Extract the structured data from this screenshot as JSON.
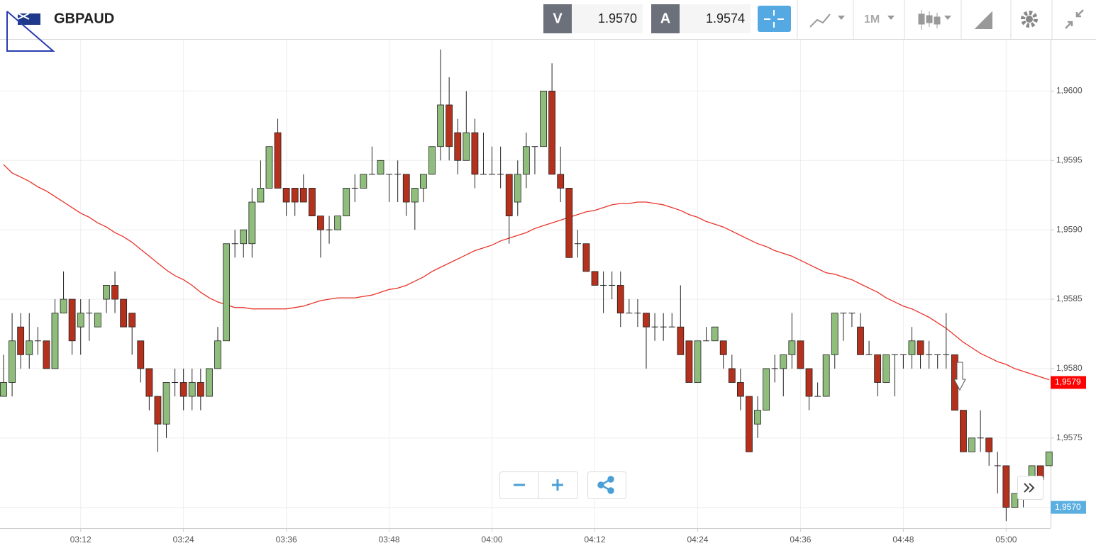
{
  "header": {
    "symbol": "GBPAUD",
    "sell_label": "V",
    "sell_price": "1.9570",
    "buy_label": "A",
    "buy_price": "1.9574",
    "timeframe": "1M"
  },
  "chart_data": {
    "type": "candlestick",
    "x": [
      "03:03",
      "03:04",
      "03:05",
      "03:06",
      "03:07",
      "03:08",
      "03:09",
      "03:10",
      "03:11",
      "03:12",
      "03:13",
      "03:14",
      "03:15",
      "03:16",
      "03:17",
      "03:18",
      "03:19",
      "03:20",
      "03:21",
      "03:22",
      "03:23",
      "03:24",
      "03:25",
      "03:26",
      "03:27",
      "03:28",
      "03:29",
      "03:30",
      "03:31",
      "03:32",
      "03:33",
      "03:34",
      "03:35",
      "03:36",
      "03:37",
      "03:38",
      "03:39",
      "03:40",
      "03:41",
      "03:42",
      "03:43",
      "03:44",
      "03:45",
      "03:46",
      "03:47",
      "03:48",
      "03:49",
      "03:50",
      "03:51",
      "03:52",
      "03:53",
      "03:54",
      "03:55",
      "03:56",
      "03:57",
      "03:58",
      "03:59",
      "04:00",
      "04:01",
      "04:02",
      "04:03",
      "04:04",
      "04:05",
      "04:06",
      "04:07",
      "04:08",
      "04:09",
      "04:10",
      "04:11",
      "04:12",
      "04:13",
      "04:14",
      "04:15",
      "04:16",
      "04:17",
      "04:18",
      "04:19",
      "04:20",
      "04:21",
      "04:22",
      "04:23",
      "04:24",
      "04:25",
      "04:26",
      "04:27",
      "04:28",
      "04:29",
      "04:30",
      "04:31",
      "04:32",
      "04:33",
      "04:34",
      "04:35",
      "04:36",
      "04:37",
      "04:38",
      "04:39",
      "04:40",
      "04:41",
      "04:42",
      "04:43",
      "04:44",
      "04:45",
      "04:46",
      "04:47",
      "04:48",
      "04:49",
      "04:50",
      "04:51",
      "04:52",
      "04:53",
      "04:54",
      "04:55",
      "04:56",
      "04:57",
      "04:58",
      "04:59",
      "05:00",
      "05:01",
      "05:02",
      "05:03",
      "05:04",
      "05:05"
    ],
    "open": [
      1.9578,
      1.9579,
      1.9583,
      1.9581,
      1.9582,
      1.9582,
      1.958,
      1.9584,
      1.9585,
      1.9583,
      1.9584,
      1.9583,
      1.9585,
      1.9586,
      1.9585,
      1.9584,
      1.9582,
      1.958,
      1.9578,
      1.9576,
      1.9579,
      1.9579,
      1.9578,
      1.9579,
      1.9578,
      1.958,
      1.9582,
      1.9589,
      1.9589,
      1.9589,
      1.9592,
      1.9593,
      1.9597,
      1.9593,
      1.9593,
      1.9593,
      1.9593,
      1.9591,
      1.959,
      1.959,
      1.9591,
      1.9593,
      1.9593,
      1.9594,
      1.9594,
      1.9594,
      1.9594,
      1.9594,
      1.9592,
      1.9593,
      1.9594,
      1.9596,
      1.9599,
      1.9597,
      1.9595,
      1.9597,
      1.9594,
      1.9594,
      1.9594,
      1.9594,
      1.9592,
      1.9594,
      1.9596,
      1.9596,
      1.96,
      1.9594,
      1.9593,
      1.9589,
      1.9589,
      1.9587,
      1.9586,
      1.9586,
      1.9586,
      1.9584,
      1.9584,
      1.9584,
      1.9583,
      1.9583,
      1.9583,
      1.9583,
      1.9582,
      1.9579,
      1.9582,
      1.9582,
      1.9582,
      1.958,
      1.9579,
      1.9578,
      1.9576,
      1.9577,
      1.958,
      1.958,
      1.9581,
      1.9582,
      1.958,
      1.9578,
      1.9578,
      1.9581,
      1.9584,
      1.9584,
      1.9583,
      1.9581,
      1.9581,
      1.9579,
      1.9581,
      1.9581,
      1.9581,
      1.9582,
      1.9581,
      1.9581,
      1.9581,
      1.9581,
      1.9577,
      1.9574,
      1.9575,
      1.9575,
      1.9573,
      1.9573,
      1.957,
      1.9571,
      1.9571,
      1.9573,
      1.9573
    ],
    "high": [
      1.9581,
      1.9584,
      1.9584,
      1.9584,
      1.9583,
      1.9582,
      1.9585,
      1.9587,
      1.9585,
      1.9585,
      1.9585,
      1.9584,
      1.9586,
      1.9587,
      1.9585,
      1.9584,
      1.9582,
      1.958,
      1.9578,
      1.9579,
      1.958,
      1.958,
      1.958,
      1.958,
      1.958,
      1.9583,
      1.9589,
      1.959,
      1.959,
      1.9593,
      1.9595,
      1.9596,
      1.9598,
      1.9593,
      1.9593,
      1.9594,
      1.9593,
      1.9591,
      1.9591,
      1.9591,
      1.9593,
      1.9594,
      1.9594,
      1.9596,
      1.9595,
      1.9594,
      1.9595,
      1.9594,
      1.9593,
      1.9594,
      1.9596,
      1.9603,
      1.9601,
      1.9598,
      1.96,
      1.9598,
      1.9597,
      1.9596,
      1.9596,
      1.9594,
      1.9595,
      1.9597,
      1.9596,
      1.96,
      1.9602,
      1.9596,
      1.9593,
      1.959,
      1.9589,
      1.9587,
      1.9587,
      1.9587,
      1.9587,
      1.9585,
      1.9585,
      1.9584,
      1.9584,
      1.9584,
      1.9584,
      1.9586,
      1.9582,
      1.9582,
      1.9583,
      1.9583,
      1.9582,
      1.9581,
      1.958,
      1.9578,
      1.9578,
      1.958,
      1.9581,
      1.9581,
      1.9584,
      1.9582,
      1.958,
      1.9579,
      1.9581,
      1.9584,
      1.9584,
      1.9584,
      1.9584,
      1.9582,
      1.9581,
      1.9581,
      1.9581,
      1.9581,
      1.9583,
      1.9582,
      1.9582,
      1.9581,
      1.9584,
      1.9581,
      1.9577,
      1.9575,
      1.9577,
      1.9575,
      1.9574,
      1.9573,
      1.9571,
      1.9572,
      1.9573,
      1.9573,
      1.9574
    ],
    "low": [
      1.9578,
      1.9578,
      1.958,
      1.958,
      1.9581,
      1.958,
      1.958,
      1.9584,
      1.9581,
      1.9581,
      1.9582,
      1.9583,
      1.9584,
      1.9584,
      1.9583,
      1.9581,
      1.9579,
      1.9577,
      1.9574,
      1.9575,
      1.9578,
      1.9577,
      1.9577,
      1.9577,
      1.9578,
      1.958,
      1.9582,
      1.9588,
      1.9588,
      1.9588,
      1.9592,
      1.9593,
      1.9593,
      1.9591,
      1.9591,
      1.9592,
      1.9591,
      1.9588,
      1.9589,
      1.959,
      1.9591,
      1.9592,
      1.9593,
      1.9594,
      1.9594,
      1.9592,
      1.9592,
      1.9591,
      1.959,
      1.9592,
      1.9594,
      1.9595,
      1.9595,
      1.9594,
      1.9595,
      1.9593,
      1.9594,
      1.9594,
      1.9593,
      1.9589,
      1.9591,
      1.9593,
      1.9594,
      1.9596,
      1.9594,
      1.9592,
      1.9588,
      1.9588,
      1.9587,
      1.9586,
      1.9584,
      1.9585,
      1.9583,
      1.9584,
      1.9583,
      1.958,
      1.9582,
      1.9582,
      1.9583,
      1.9581,
      1.9579,
      1.9579,
      1.9582,
      1.9582,
      1.958,
      1.9579,
      1.9577,
      1.9574,
      1.9575,
      1.9577,
      1.9579,
      1.9578,
      1.958,
      1.958,
      1.9577,
      1.9578,
      1.9578,
      1.958,
      1.9582,
      1.9583,
      1.9581,
      1.9581,
      1.9578,
      1.9579,
      1.9578,
      1.958,
      1.958,
      1.958,
      1.958,
      1.958,
      1.958,
      1.9577,
      1.9574,
      1.9574,
      1.9574,
      1.9573,
      1.9571,
      1.9569,
      1.957,
      1.957,
      1.9571,
      1.9571,
      1.9573
    ],
    "close": [
      1.9579,
      1.9582,
      1.9581,
      1.9582,
      1.9582,
      1.958,
      1.9584,
      1.9585,
      1.9582,
      1.9584,
      1.9584,
      1.9584,
      1.9586,
      1.9585,
      1.9583,
      1.9583,
      1.958,
      1.9578,
      1.9576,
      1.9579,
      1.9579,
      1.9578,
      1.9579,
      1.9578,
      1.958,
      1.9582,
      1.9589,
      1.9589,
      1.959,
      1.9592,
      1.9593,
      1.9596,
      1.9593,
      1.9592,
      1.9592,
      1.9592,
      1.9591,
      1.959,
      1.959,
      1.9591,
      1.9593,
      1.9593,
      1.9594,
      1.9594,
      1.9595,
      1.9594,
      1.9594,
      1.9592,
      1.9593,
      1.9594,
      1.9596,
      1.9599,
      1.9596,
      1.9595,
      1.9597,
      1.9594,
      1.9594,
      1.9594,
      1.9594,
      1.9591,
      1.9594,
      1.9596,
      1.9596,
      1.96,
      1.9594,
      1.9593,
      1.9588,
      1.9589,
      1.9587,
      1.9586,
      1.9586,
      1.9586,
      1.9584,
      1.9584,
      1.9584,
      1.9583,
      1.9583,
      1.9583,
      1.9583,
      1.9581,
      1.9579,
      1.9582,
      1.9582,
      1.9583,
      1.9581,
      1.9579,
      1.9578,
      1.9574,
      1.9577,
      1.958,
      1.958,
      1.9581,
      1.9582,
      1.958,
      1.9578,
      1.9578,
      1.9581,
      1.9584,
      1.9584,
      1.9584,
      1.9581,
      1.9581,
      1.9579,
      1.9581,
      1.9581,
      1.9581,
      1.9582,
      1.9581,
      1.9581,
      1.9581,
      1.9581,
      1.9577,
      1.9574,
      1.9575,
      1.9575,
      1.9574,
      1.9573,
      1.957,
      1.9571,
      1.9571,
      1.9573,
      1.9572,
      1.9574
    ],
    "up_color": "#8fbd7c",
    "down_color": "#b3311d",
    "ma": {
      "color": "#e8332a",
      "values": [
        1.95947,
        1.95941,
        1.95938,
        1.95935,
        1.95931,
        1.95928,
        1.95924,
        1.9592,
        1.95916,
        1.95912,
        1.95909,
        1.95905,
        1.95902,
        1.95898,
        1.95895,
        1.95891,
        1.95886,
        1.95881,
        1.95876,
        1.95871,
        1.95867,
        1.95864,
        1.9586,
        1.95855,
        1.95851,
        1.95848,
        1.95846,
        1.95844,
        1.95844,
        1.95843,
        1.95843,
        1.95843,
        1.95843,
        1.95843,
        1.95844,
        1.95845,
        1.95847,
        1.95849,
        1.9585,
        1.95851,
        1.95851,
        1.95851,
        1.95852,
        1.95853,
        1.95855,
        1.95857,
        1.95858,
        1.9586,
        1.95863,
        1.95866,
        1.9587,
        1.95873,
        1.95876,
        1.95879,
        1.95882,
        1.95885,
        1.95887,
        1.95889,
        1.95892,
        1.95894,
        1.95896,
        1.95898,
        1.95901,
        1.95903,
        1.95905,
        1.95907,
        1.95909,
        1.95911,
        1.95913,
        1.95914,
        1.95916,
        1.95918,
        1.95919,
        1.95919,
        1.9592,
        1.9592,
        1.95919,
        1.95918,
        1.95916,
        1.95914,
        1.95911,
        1.95909,
        1.95906,
        1.95904,
        1.95902,
        1.95899,
        1.95896,
        1.95893,
        1.9589,
        1.95888,
        1.95885,
        1.95883,
        1.95881,
        1.95878,
        1.95875,
        1.95872,
        1.95869,
        1.95868,
        1.95866,
        1.95864,
        1.95861,
        1.95858,
        1.95855,
        1.95851,
        1.95848,
        1.95845,
        1.95843,
        1.9584,
        1.95837,
        1.95833,
        1.95829,
        1.95824,
        1.95819,
        1.95815,
        1.95811,
        1.95808,
        1.95805,
        1.95803,
        1.958,
        1.95798,
        1.95796,
        1.95794,
        1.95792
      ]
    },
    "ylim": [
      1.95685,
      1.96037
    ],
    "yticks": [
      {
        "value": 1.957,
        "label": "1,9570"
      },
      {
        "value": 1.9575,
        "label": "1,9575"
      },
      {
        "value": 1.958,
        "label": "1,9580"
      },
      {
        "value": 1.9585,
        "label": "1,9585"
      },
      {
        "value": 1.959,
        "label": "1,9590"
      },
      {
        "value": 1.9595,
        "label": "1,9595"
      },
      {
        "value": 1.96,
        "label": "1,9600"
      }
    ],
    "xticks": [
      "03:12",
      "03:24",
      "03:36",
      "03:48",
      "04:00",
      "04:12",
      "04:24",
      "04:36",
      "04:48",
      "05:00"
    ],
    "price_badges": [
      {
        "value": 1.9579,
        "label": "1,9579",
        "color": "#ff0000"
      },
      {
        "value": 1.957,
        "label": "1,9570",
        "color": "#5aaee0"
      }
    ],
    "grid": true
  }
}
